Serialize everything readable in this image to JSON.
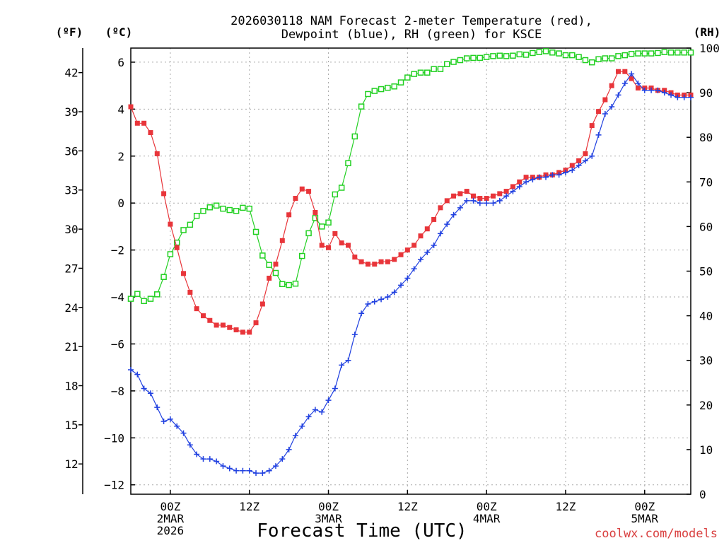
{
  "chart_data": {
    "type": "line",
    "title_line1": "2026030118 NAM Forecast 2-meter Temperature (red),",
    "title_line2": "Dewpoint (blue), RH (green) for KSCE",
    "xlabel": "Forecast Time (UTC)",
    "credit": "coolwx.com/models",
    "unit_f": "(ºF)",
    "unit_c": "(ºC)",
    "unit_rh": "(RH)",
    "x_units": "hours since 2026-03-01 18Z",
    "xlim": [
      0,
      85
    ],
    "ylim_c": [
      -12.4,
      6.6
    ],
    "ylim_rh": [
      0,
      100
    ],
    "ticks_c": [
      "6",
      "4",
      "2",
      "0",
      "−2",
      "−4",
      "−6",
      "−8",
      "−10",
      "−12"
    ],
    "ticks_c_values": [
      6,
      4,
      2,
      0,
      -2,
      -4,
      -6,
      -8,
      -10,
      -12
    ],
    "ticks_f": [
      "42",
      "39",
      "36",
      "33",
      "30",
      "27",
      "24",
      "21",
      "18",
      "15",
      "12"
    ],
    "ticks_f_values": [
      42,
      39,
      36,
      33,
      30,
      27,
      24,
      21,
      18,
      15,
      12
    ],
    "ticks_rh": [
      "100",
      "90",
      "80",
      "70",
      "60",
      "50",
      "40",
      "30",
      "20",
      "10",
      "0"
    ],
    "ticks_rh_values": [
      100,
      90,
      80,
      70,
      60,
      50,
      40,
      30,
      20,
      10,
      0
    ],
    "x_ticks": [
      {
        "x": 6,
        "lines": [
          "00Z",
          "2MAR",
          "2026"
        ]
      },
      {
        "x": 18,
        "lines": [
          "12Z"
        ]
      },
      {
        "x": 30,
        "lines": [
          "00Z",
          "3MAR"
        ]
      },
      {
        "x": 42,
        "lines": [
          "12Z"
        ]
      },
      {
        "x": 54,
        "lines": [
          "00Z",
          "4MAR"
        ]
      },
      {
        "x": 66,
        "lines": [
          "12Z"
        ]
      },
      {
        "x": 78,
        "lines": [
          "00Z",
          "5MAR"
        ]
      }
    ],
    "colors": {
      "temperature": "#e8353a",
      "dewpoint": "#2040e0",
      "rh": "#22d022",
      "grid": "#a9a9a9"
    },
    "series": [
      {
        "name": "2-meter Temperature",
        "unit": "C",
        "x": [
          0,
          1,
          2,
          3,
          4,
          5,
          6,
          7,
          8,
          9,
          10,
          11,
          12,
          13,
          14,
          15,
          16,
          17,
          18,
          19,
          20,
          21,
          22,
          23,
          24,
          25,
          26,
          27,
          28,
          29,
          30,
          31,
          32,
          33,
          34,
          35,
          36,
          37,
          38,
          39,
          40,
          41,
          42,
          43,
          44,
          45,
          46,
          47,
          48,
          49,
          50,
          51,
          52,
          53,
          54,
          55,
          56,
          57,
          58,
          59,
          60,
          61,
          62,
          63,
          64,
          65,
          66,
          67,
          68,
          69,
          70,
          71,
          72,
          73,
          74,
          75,
          76,
          77,
          78,
          79,
          80,
          81,
          82,
          83,
          84,
          85
        ],
        "values": [
          4.1,
          3.4,
          3.4,
          3.0,
          2.1,
          0.4,
          -0.9,
          -1.9,
          -3.0,
          -3.8,
          -4.5,
          -4.8,
          -5.0,
          -5.2,
          -5.2,
          -5.3,
          -5.4,
          -5.5,
          -5.5,
          -5.1,
          -4.3,
          -3.2,
          -2.6,
          -1.6,
          -0.5,
          0.2,
          0.6,
          0.5,
          -0.4,
          -1.8,
          -1.9,
          -1.3,
          -1.7,
          -1.8,
          -2.3,
          -2.5,
          -2.6,
          -2.6,
          -2.5,
          -2.5,
          -2.4,
          -2.2,
          -2.0,
          -1.8,
          -1.4,
          -1.1,
          -0.7,
          -0.2,
          0.1,
          0.3,
          0.4,
          0.5,
          0.3,
          0.2,
          0.2,
          0.3,
          0.4,
          0.5,
          0.7,
          0.9,
          1.1,
          1.1,
          1.1,
          1.2,
          1.2,
          1.3,
          1.4,
          1.6,
          1.8,
          2.1,
          3.3,
          3.9,
          4.4,
          5.0,
          5.6,
          5.6,
          5.3,
          4.9,
          4.9,
          4.9,
          4.8,
          4.8,
          4.7,
          4.6,
          4.6,
          4.6
        ]
      },
      {
        "name": "Dewpoint",
        "unit": "C",
        "x": [
          0,
          1,
          2,
          3,
          4,
          5,
          6,
          7,
          8,
          9,
          10,
          11,
          12,
          13,
          14,
          15,
          16,
          17,
          18,
          19,
          20,
          21,
          22,
          23,
          24,
          25,
          26,
          27,
          28,
          29,
          30,
          31,
          32,
          33,
          34,
          35,
          36,
          37,
          38,
          39,
          40,
          41,
          42,
          43,
          44,
          45,
          46,
          47,
          48,
          49,
          50,
          51,
          52,
          53,
          54,
          55,
          56,
          57,
          58,
          59,
          60,
          61,
          62,
          63,
          64,
          65,
          66,
          67,
          68,
          69,
          70,
          71,
          72,
          73,
          74,
          75,
          76,
          77,
          78,
          79,
          80,
          81,
          82,
          83,
          84,
          85
        ],
        "values": [
          -7.1,
          -7.3,
          -7.9,
          -8.1,
          -8.7,
          -9.3,
          -9.2,
          -9.5,
          -9.8,
          -10.3,
          -10.7,
          -10.9,
          -10.9,
          -11.0,
          -11.2,
          -11.3,
          -11.4,
          -11.4,
          -11.4,
          -11.5,
          -11.5,
          -11.4,
          -11.2,
          -10.9,
          -10.5,
          -9.9,
          -9.5,
          -9.1,
          -8.8,
          -8.9,
          -8.4,
          -7.9,
          -6.9,
          -6.7,
          -5.6,
          -4.7,
          -4.3,
          -4.2,
          -4.1,
          -4.0,
          -3.8,
          -3.5,
          -3.2,
          -2.8,
          -2.4,
          -2.1,
          -1.8,
          -1.3,
          -0.9,
          -0.5,
          -0.2,
          0.1,
          0.1,
          0.0,
          0.0,
          0.0,
          0.1,
          0.3,
          0.5,
          0.7,
          0.9,
          1.0,
          1.1,
          1.1,
          1.2,
          1.2,
          1.3,
          1.4,
          1.6,
          1.8,
          2.0,
          2.9,
          3.8,
          4.1,
          4.6,
          5.1,
          5.5,
          5.1,
          4.8,
          4.8,
          4.8,
          4.7,
          4.6,
          4.5,
          4.5,
          4.5
        ]
      },
      {
        "name": "RH",
        "unit": "%",
        "x": [
          0,
          1,
          2,
          3,
          4,
          5,
          6,
          7,
          8,
          9,
          10,
          11,
          12,
          13,
          14,
          15,
          16,
          17,
          18,
          19,
          20,
          21,
          22,
          23,
          24,
          25,
          26,
          27,
          28,
          29,
          30,
          31,
          32,
          33,
          34,
          35,
          36,
          37,
          38,
          39,
          40,
          41,
          42,
          43,
          44,
          45,
          46,
          47,
          48,
          49,
          50,
          51,
          52,
          53,
          54,
          55,
          56,
          57,
          58,
          59,
          60,
          61,
          62,
          63,
          64,
          65,
          66,
          67,
          68,
          69,
          70,
          71,
          72,
          73,
          74,
          75,
          76,
          77,
          78,
          79,
          80,
          81,
          82,
          83,
          84,
          85
        ],
        "values": [
          43.8,
          44.9,
          43.3,
          43.8,
          44.8,
          48.7,
          53.8,
          56.4,
          59.2,
          60.4,
          62.4,
          63.5,
          64.3,
          64.7,
          64.0,
          63.7,
          63.5,
          64.2,
          64.0,
          58.8,
          53.5,
          51.4,
          49.6,
          47.1,
          46.9,
          47.2,
          53.4,
          58.5,
          61.9,
          60.0,
          60.9,
          67.2,
          68.7,
          74.2,
          80.2,
          86.9,
          89.7,
          90.4,
          90.8,
          91.1,
          91.4,
          92.3,
          93.4,
          94.2,
          94.5,
          94.5,
          95.3,
          95.3,
          96.4,
          96.9,
          97.3,
          97.7,
          97.8,
          97.8,
          98.0,
          98.2,
          98.3,
          98.2,
          98.3,
          98.6,
          98.5,
          98.9,
          99.1,
          99.3,
          99.0,
          98.8,
          98.4,
          98.4,
          98.0,
          97.3,
          96.8,
          97.5,
          97.7,
          97.7,
          98.2,
          98.4,
          98.7,
          98.8,
          98.8,
          98.8,
          98.9,
          99.1,
          99.0,
          99.0,
          99.0,
          99.0
        ]
      }
    ]
  }
}
